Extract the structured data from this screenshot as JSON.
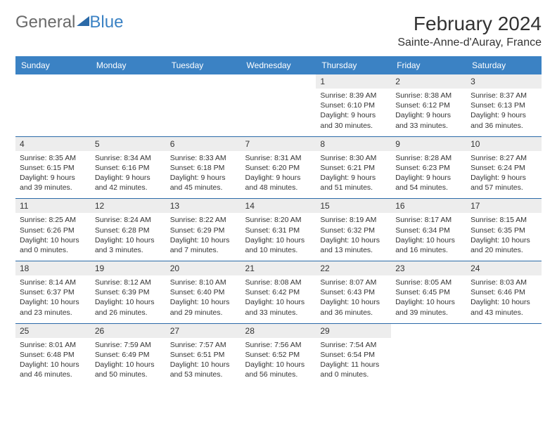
{
  "brand": {
    "part1": "General",
    "part2": "Blue"
  },
  "title": "February 2024",
  "location": "Sainte-Anne-d'Auray, France",
  "colors": {
    "header_bg": "#3b82c4",
    "header_text": "#ffffff",
    "daynum_bg": "#ededed",
    "rule": "#2b6aa8",
    "text": "#333333",
    "logo_gray": "#6a6a6a",
    "logo_blue": "#3b82c4",
    "background": "#ffffff"
  },
  "typography": {
    "title_fontsize": 28,
    "location_fontsize": 16,
    "header_fontsize": 12,
    "daynum_fontsize": 12,
    "detail_fontsize": 10.5
  },
  "dayNames": [
    "Sunday",
    "Monday",
    "Tuesday",
    "Wednesday",
    "Thursday",
    "Friday",
    "Saturday"
  ],
  "weeks": [
    [
      null,
      null,
      null,
      null,
      {
        "n": "1",
        "sr": "8:39 AM",
        "ss": "6:10 PM",
        "dl": "9 hours and 30 minutes."
      },
      {
        "n": "2",
        "sr": "8:38 AM",
        "ss": "6:12 PM",
        "dl": "9 hours and 33 minutes."
      },
      {
        "n": "3",
        "sr": "8:37 AM",
        "ss": "6:13 PM",
        "dl": "9 hours and 36 minutes."
      }
    ],
    [
      {
        "n": "4",
        "sr": "8:35 AM",
        "ss": "6:15 PM",
        "dl": "9 hours and 39 minutes."
      },
      {
        "n": "5",
        "sr": "8:34 AM",
        "ss": "6:16 PM",
        "dl": "9 hours and 42 minutes."
      },
      {
        "n": "6",
        "sr": "8:33 AM",
        "ss": "6:18 PM",
        "dl": "9 hours and 45 minutes."
      },
      {
        "n": "7",
        "sr": "8:31 AM",
        "ss": "6:20 PM",
        "dl": "9 hours and 48 minutes."
      },
      {
        "n": "8",
        "sr": "8:30 AM",
        "ss": "6:21 PM",
        "dl": "9 hours and 51 minutes."
      },
      {
        "n": "9",
        "sr": "8:28 AM",
        "ss": "6:23 PM",
        "dl": "9 hours and 54 minutes."
      },
      {
        "n": "10",
        "sr": "8:27 AM",
        "ss": "6:24 PM",
        "dl": "9 hours and 57 minutes."
      }
    ],
    [
      {
        "n": "11",
        "sr": "8:25 AM",
        "ss": "6:26 PM",
        "dl": "10 hours and 0 minutes."
      },
      {
        "n": "12",
        "sr": "8:24 AM",
        "ss": "6:28 PM",
        "dl": "10 hours and 3 minutes."
      },
      {
        "n": "13",
        "sr": "8:22 AM",
        "ss": "6:29 PM",
        "dl": "10 hours and 7 minutes."
      },
      {
        "n": "14",
        "sr": "8:20 AM",
        "ss": "6:31 PM",
        "dl": "10 hours and 10 minutes."
      },
      {
        "n": "15",
        "sr": "8:19 AM",
        "ss": "6:32 PM",
        "dl": "10 hours and 13 minutes."
      },
      {
        "n": "16",
        "sr": "8:17 AM",
        "ss": "6:34 PM",
        "dl": "10 hours and 16 minutes."
      },
      {
        "n": "17",
        "sr": "8:15 AM",
        "ss": "6:35 PM",
        "dl": "10 hours and 20 minutes."
      }
    ],
    [
      {
        "n": "18",
        "sr": "8:14 AM",
        "ss": "6:37 PM",
        "dl": "10 hours and 23 minutes."
      },
      {
        "n": "19",
        "sr": "8:12 AM",
        "ss": "6:39 PM",
        "dl": "10 hours and 26 minutes."
      },
      {
        "n": "20",
        "sr": "8:10 AM",
        "ss": "6:40 PM",
        "dl": "10 hours and 29 minutes."
      },
      {
        "n": "21",
        "sr": "8:08 AM",
        "ss": "6:42 PM",
        "dl": "10 hours and 33 minutes."
      },
      {
        "n": "22",
        "sr": "8:07 AM",
        "ss": "6:43 PM",
        "dl": "10 hours and 36 minutes."
      },
      {
        "n": "23",
        "sr": "8:05 AM",
        "ss": "6:45 PM",
        "dl": "10 hours and 39 minutes."
      },
      {
        "n": "24",
        "sr": "8:03 AM",
        "ss": "6:46 PM",
        "dl": "10 hours and 43 minutes."
      }
    ],
    [
      {
        "n": "25",
        "sr": "8:01 AM",
        "ss": "6:48 PM",
        "dl": "10 hours and 46 minutes."
      },
      {
        "n": "26",
        "sr": "7:59 AM",
        "ss": "6:49 PM",
        "dl": "10 hours and 50 minutes."
      },
      {
        "n": "27",
        "sr": "7:57 AM",
        "ss": "6:51 PM",
        "dl": "10 hours and 53 minutes."
      },
      {
        "n": "28",
        "sr": "7:56 AM",
        "ss": "6:52 PM",
        "dl": "10 hours and 56 minutes."
      },
      {
        "n": "29",
        "sr": "7:54 AM",
        "ss": "6:54 PM",
        "dl": "11 hours and 0 minutes."
      },
      null,
      null
    ]
  ],
  "labels": {
    "sunrise": "Sunrise: ",
    "sunset": "Sunset: ",
    "daylight": "Daylight: "
  }
}
